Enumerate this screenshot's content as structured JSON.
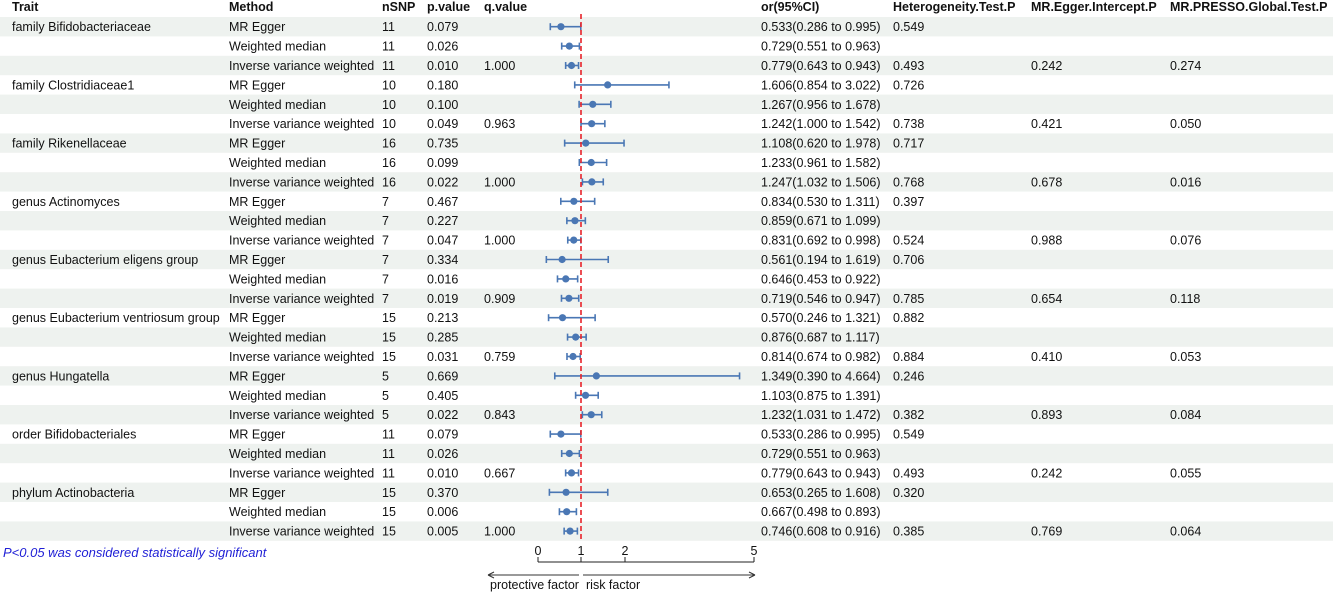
{
  "chart_data": {
    "type": "forest",
    "columns": [
      "Trait",
      "Method",
      "nSNP",
      "p.value",
      "q.value",
      "or(95%CI)",
      "Heterogeneity.Test.P",
      "MR.Egger.Intercept.P",
      "MR.PRESSO.Global.Test.P"
    ],
    "rows": [
      {
        "trait": "family Bifidobacteriaceae",
        "method": "MR Egger",
        "nsnp": "11",
        "pval": "0.079",
        "qval": "",
        "or_text": "0.533(0.286 to 0.995)",
        "het": "0.549",
        "egger": "",
        "presso": "",
        "or": 0.533,
        "lo": 0.286,
        "hi": 0.995
      },
      {
        "trait": "",
        "method": "Weighted median",
        "nsnp": "11",
        "pval": "0.026",
        "qval": "",
        "or_text": "0.729(0.551 to 0.963)",
        "het": "",
        "egger": "",
        "presso": "",
        "or": 0.729,
        "lo": 0.551,
        "hi": 0.963
      },
      {
        "trait": "",
        "method": "Inverse variance weighted",
        "nsnp": "11",
        "pval": "0.010",
        "qval": "1.000",
        "or_text": "0.779(0.643 to 0.943)",
        "het": "0.493",
        "egger": "0.242",
        "presso": "0.274",
        "or": 0.779,
        "lo": 0.643,
        "hi": 0.943
      },
      {
        "trait": "family Clostridiaceae1",
        "method": "MR Egger",
        "nsnp": "10",
        "pval": "0.180",
        "qval": "",
        "or_text": "1.606(0.854 to 3.022)",
        "het": "0.726",
        "egger": "",
        "presso": "",
        "or": 1.606,
        "lo": 0.854,
        "hi": 3.022
      },
      {
        "trait": "",
        "method": "Weighted median",
        "nsnp": "10",
        "pval": "0.100",
        "qval": "",
        "or_text": "1.267(0.956 to 1.678)",
        "het": "",
        "egger": "",
        "presso": "",
        "or": 1.267,
        "lo": 0.956,
        "hi": 1.678
      },
      {
        "trait": "",
        "method": "Inverse variance weighted",
        "nsnp": "10",
        "pval": "0.049",
        "qval": "0.963",
        "or_text": "1.242(1.000 to 1.542)",
        "het": "0.738",
        "egger": "0.421",
        "presso": "0.050",
        "or": 1.242,
        "lo": 1.0,
        "hi": 1.542
      },
      {
        "trait": "family Rikenellaceae",
        "method": "MR Egger",
        "nsnp": "16",
        "pval": "0.735",
        "qval": "",
        "or_text": "1.108(0.620 to 1.978)",
        "het": "0.717",
        "egger": "",
        "presso": "",
        "or": 1.108,
        "lo": 0.62,
        "hi": 1.978
      },
      {
        "trait": "",
        "method": "Weighted median",
        "nsnp": "16",
        "pval": "0.099",
        "qval": "",
        "or_text": "1.233(0.961 to 1.582)",
        "het": "",
        "egger": "",
        "presso": "",
        "or": 1.233,
        "lo": 0.961,
        "hi": 1.582
      },
      {
        "trait": "",
        "method": "Inverse variance weighted",
        "nsnp": "16",
        "pval": "0.022",
        "qval": "1.000",
        "or_text": "1.247(1.032 to 1.506)",
        "het": "0.768",
        "egger": "0.678",
        "presso": "0.016",
        "or": 1.247,
        "lo": 1.032,
        "hi": 1.506
      },
      {
        "trait": "genus Actinomyces",
        "method": "MR Egger",
        "nsnp": "7",
        "pval": "0.467",
        "qval": "",
        "or_text": "0.834(0.530 to 1.311)",
        "het": "0.397",
        "egger": "",
        "presso": "",
        "or": 0.834,
        "lo": 0.53,
        "hi": 1.311
      },
      {
        "trait": "",
        "method": "Weighted median",
        "nsnp": "7",
        "pval": "0.227",
        "qval": "",
        "or_text": "0.859(0.671 to 1.099)",
        "het": "",
        "egger": "",
        "presso": "",
        "or": 0.859,
        "lo": 0.671,
        "hi": 1.099
      },
      {
        "trait": "",
        "method": "Inverse variance weighted",
        "nsnp": "7",
        "pval": "0.047",
        "qval": "1.000",
        "or_text": "0.831(0.692 to 0.998)",
        "het": "0.524",
        "egger": "0.988",
        "presso": "0.076",
        "or": 0.831,
        "lo": 0.692,
        "hi": 0.998
      },
      {
        "trait": "genus Eubacterium eligens group",
        "method": "MR Egger",
        "nsnp": "7",
        "pval": "0.334",
        "qval": "",
        "or_text": "0.561(0.194 to 1.619)",
        "het": "0.706",
        "egger": "",
        "presso": "",
        "or": 0.561,
        "lo": 0.194,
        "hi": 1.619
      },
      {
        "trait": "",
        "method": "Weighted median",
        "nsnp": "7",
        "pval": "0.016",
        "qval": "",
        "or_text": "0.646(0.453 to 0.922)",
        "het": "",
        "egger": "",
        "presso": "",
        "or": 0.646,
        "lo": 0.453,
        "hi": 0.922
      },
      {
        "trait": "",
        "method": "Inverse variance weighted",
        "nsnp": "7",
        "pval": "0.019",
        "qval": "0.909",
        "or_text": "0.719(0.546 to 0.947)",
        "het": "0.785",
        "egger": "0.654",
        "presso": "0.118",
        "or": 0.719,
        "lo": 0.546,
        "hi": 0.947
      },
      {
        "trait": "genus Eubacterium ventriosum group",
        "method": "MR Egger",
        "nsnp": "15",
        "pval": "0.213",
        "qval": "",
        "or_text": "0.570(0.246 to 1.321)",
        "het": "0.882",
        "egger": "",
        "presso": "",
        "or": 0.57,
        "lo": 0.246,
        "hi": 1.321
      },
      {
        "trait": "",
        "method": "Weighted median",
        "nsnp": "15",
        "pval": "0.285",
        "qval": "",
        "or_text": "0.876(0.687 to 1.117)",
        "het": "",
        "egger": "",
        "presso": "",
        "or": 0.876,
        "lo": 0.687,
        "hi": 1.117
      },
      {
        "trait": "",
        "method": "Inverse variance weighted",
        "nsnp": "15",
        "pval": "0.031",
        "qval": "0.759",
        "or_text": "0.814(0.674 to 0.982)",
        "het": "0.884",
        "egger": "0.410",
        "presso": "0.053",
        "or": 0.814,
        "lo": 0.674,
        "hi": 0.982
      },
      {
        "trait": "genus Hungatella",
        "method": "MR Egger",
        "nsnp": "5",
        "pval": "0.669",
        "qval": "",
        "or_text": "1.349(0.390 to 4.664)",
        "het": "0.246",
        "egger": "",
        "presso": "",
        "or": 1.349,
        "lo": 0.39,
        "hi": 4.664
      },
      {
        "trait": "",
        "method": "Weighted median",
        "nsnp": "5",
        "pval": "0.405",
        "qval": "",
        "or_text": "1.103(0.875 to 1.391)",
        "het": "",
        "egger": "",
        "presso": "",
        "or": 1.103,
        "lo": 0.875,
        "hi": 1.391
      },
      {
        "trait": "",
        "method": "Inverse variance weighted",
        "nsnp": "5",
        "pval": "0.022",
        "qval": "0.843",
        "or_text": "1.232(1.031 to 1.472)",
        "het": "0.382",
        "egger": "0.893",
        "presso": "0.084",
        "or": 1.232,
        "lo": 1.031,
        "hi": 1.472
      },
      {
        "trait": "order Bifidobacteriales",
        "method": "MR Egger",
        "nsnp": "11",
        "pval": "0.079",
        "qval": "",
        "or_text": "0.533(0.286 to 0.995)",
        "het": "0.549",
        "egger": "",
        "presso": "",
        "or": 0.533,
        "lo": 0.286,
        "hi": 0.995
      },
      {
        "trait": "",
        "method": "Weighted median",
        "nsnp": "11",
        "pval": "0.026",
        "qval": "",
        "or_text": "0.729(0.551 to 0.963)",
        "het": "",
        "egger": "",
        "presso": "",
        "or": 0.729,
        "lo": 0.551,
        "hi": 0.963
      },
      {
        "trait": "",
        "method": "Inverse variance weighted",
        "nsnp": "11",
        "pval": "0.010",
        "qval": "0.667",
        "or_text": "0.779(0.643 to 0.943)",
        "het": "0.493",
        "egger": "0.242",
        "presso": "0.055",
        "or": 0.779,
        "lo": 0.643,
        "hi": 0.943
      },
      {
        "trait": "phylum Actinobacteria",
        "method": "MR Egger",
        "nsnp": "15",
        "pval": "0.370",
        "qval": "",
        "or_text": "0.653(0.265 to 1.608)",
        "het": "0.320",
        "egger": "",
        "presso": "",
        "or": 0.653,
        "lo": 0.265,
        "hi": 1.608
      },
      {
        "trait": "",
        "method": "Weighted median",
        "nsnp": "15",
        "pval": "0.006",
        "qval": "",
        "or_text": "0.667(0.498 to 0.893)",
        "het": "",
        "egger": "",
        "presso": "",
        "or": 0.667,
        "lo": 0.498,
        "hi": 0.893
      },
      {
        "trait": "",
        "method": "Inverse variance weighted",
        "nsnp": "15",
        "pval": "0.005",
        "qval": "1.000",
        "or_text": "0.746(0.608 to 0.916)",
        "het": "0.385",
        "egger": "0.769",
        "presso": "0.064",
        "or": 0.746,
        "lo": 0.608,
        "hi": 0.916
      }
    ],
    "x_axis": {
      "ticks": [
        0,
        1,
        2,
        5
      ],
      "range": [
        0,
        5
      ],
      "reference_line": 1
    },
    "direction_labels": {
      "left": "protective factor",
      "right": "risk factor"
    },
    "footnote": "P<0.05 was considered statistically significant",
    "colors": {
      "point": "#4a77b4",
      "reference_line": "#e8232a",
      "row_shade": "#eef2ef"
    }
  }
}
